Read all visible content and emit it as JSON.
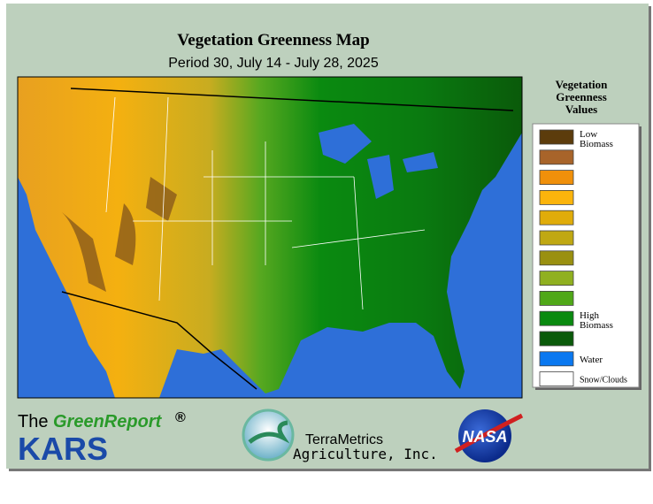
{
  "header": {
    "title": "Vegetation Greenness Map",
    "subtitle": "Period 30, July 14 - July 28, 2025"
  },
  "legend": {
    "title_lines": [
      "Vegetation",
      "Greenness",
      "Values"
    ],
    "items": [
      {
        "color": "#5c3c0c",
        "label": "Low Biomass"
      },
      {
        "color": "#a8642a"
      },
      {
        "color": "#f0900a"
      },
      {
        "color": "#fbb40c"
      },
      {
        "color": "#e0ac0a"
      },
      {
        "color": "#c0a812"
      },
      {
        "color": "#9a9010"
      },
      {
        "color": "#90b020"
      },
      {
        "color": "#50a818"
      },
      {
        "color": "#0a8a10",
        "label": "High Biomass"
      },
      {
        "color": "#0a5a0a"
      },
      {
        "color": "#0a78f0",
        "label": "Water"
      },
      {
        "color": "#ffffff",
        "label": "Snow/Clouds"
      }
    ]
  },
  "footer": {
    "brand_prefix": "The",
    "brand_name": "GreenReport",
    "brand_mark": "®",
    "brand_org": "KARS",
    "partner_line1": "TerraMetrics",
    "partner_line2": "Agriculture, Inc.",
    "agency": "NASA"
  }
}
